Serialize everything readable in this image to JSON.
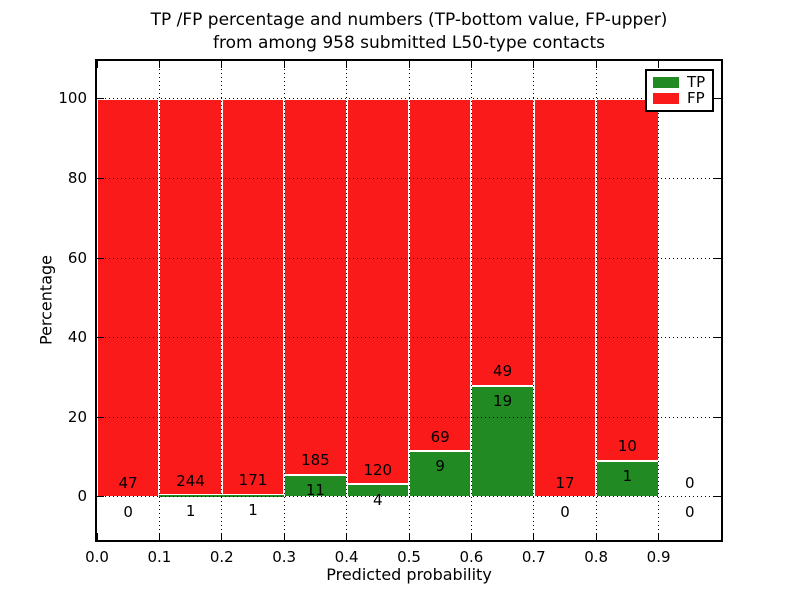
{
  "figure": {
    "title_line1": "TP /FP percentage and numbers (TP-bottom value, FP-upper)",
    "title_line2": "from among 958 submitted L50-type contacts",
    "xlabel": "Predicted probability",
    "ylabel": "Percentage",
    "background": "#ffffff",
    "legend": {
      "position": "upper right",
      "items": [
        {
          "label": "TP"
        },
        {
          "label": "FP"
        }
      ]
    }
  },
  "chart_data": {
    "type": "bar",
    "stacked": true,
    "title": "TP /FP percentage and numbers (TP-bottom value, FP-upper) from among 958 submitted L50-type contacts",
    "xlabel": "Predicted probability",
    "ylabel": "Percentage",
    "total_contacts": 958,
    "bin_edges": [
      0.0,
      0.1,
      0.2,
      0.3,
      0.4,
      0.5,
      0.6,
      0.7,
      0.8,
      0.9,
      1.0
    ],
    "xtick_labels": [
      "0.0",
      "0.1",
      "0.2",
      "0.3",
      "0.4",
      "0.5",
      "0.6",
      "0.7",
      "0.8",
      "0.9"
    ],
    "yticks": [
      0,
      20,
      40,
      60,
      80,
      100
    ],
    "xlim": [
      0.0,
      1.0
    ],
    "ylim": [
      -10.8,
      109.5
    ],
    "grid": true,
    "grid_style": "dotted",
    "grid_color": "#000000",
    "bar_edge_color": "#ffffff",
    "series": [
      {
        "name": "TP",
        "color": "#228a22",
        "counts": [
          0,
          1,
          1,
          11,
          4,
          9,
          19,
          0,
          1,
          0
        ],
        "percent": [
          0,
          0.41,
          0.58,
          5.61,
          3.23,
          11.54,
          27.94,
          0,
          9.09,
          0
        ]
      },
      {
        "name": "FP",
        "color": "#fb1a1a",
        "counts": [
          47,
          244,
          171,
          185,
          120,
          69,
          49,
          17,
          10,
          0
        ],
        "percent": [
          100,
          99.59,
          99.42,
          94.39,
          96.77,
          88.46,
          72.06,
          100,
          90.91,
          0
        ]
      }
    ]
  }
}
